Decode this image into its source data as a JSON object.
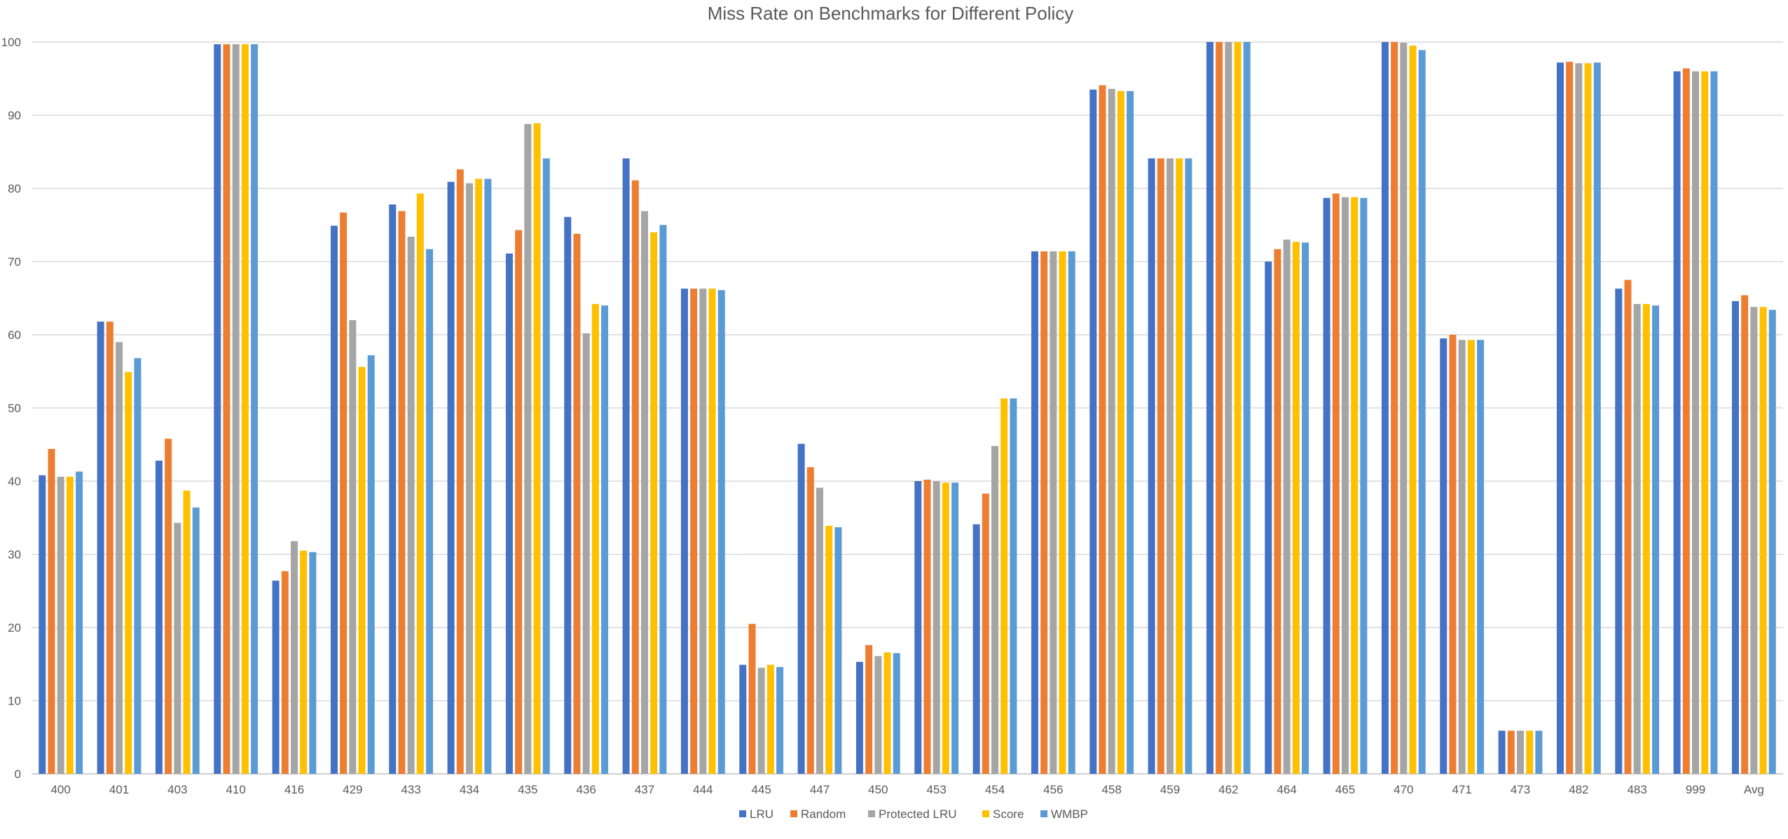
{
  "chart_data": {
    "type": "bar",
    "title": "Miss Rate on Benchmarks for Different Policy",
    "xlabel": "",
    "ylabel": "",
    "ylim": [
      0,
      100
    ],
    "yticks": [
      0,
      10,
      20,
      30,
      40,
      50,
      60,
      70,
      80,
      90,
      100
    ],
    "grid": true,
    "legend_position": "bottom",
    "categories": [
      "400",
      "401",
      "403",
      "410",
      "416",
      "429",
      "433",
      "434",
      "435",
      "436",
      "437",
      "444",
      "445",
      "447",
      "450",
      "453",
      "454",
      "456",
      "458",
      "459",
      "462",
      "464",
      "465",
      "470",
      "471",
      "473",
      "482",
      "483",
      "999",
      "Avg"
    ],
    "series": [
      {
        "name": "LRU",
        "color": "#4472c4",
        "values": [
          40.8,
          61.8,
          42.8,
          99.7,
          26.4,
          74.9,
          77.8,
          80.9,
          71.1,
          76.1,
          84.1,
          66.3,
          14.9,
          45.1,
          15.3,
          40.0,
          34.1,
          71.4,
          93.5,
          84.1,
          100.0,
          70.0,
          78.7,
          100.0,
          59.5,
          5.9,
          97.2,
          66.3,
          96.0,
          64.6
        ]
      },
      {
        "name": "Random",
        "color": "#ed7d31",
        "values": [
          44.4,
          61.8,
          45.8,
          99.7,
          27.7,
          76.7,
          76.9,
          82.6,
          74.3,
          73.8,
          81.1,
          66.3,
          20.5,
          41.9,
          17.6,
          40.2,
          38.3,
          71.4,
          94.1,
          84.1,
          100.0,
          71.7,
          79.3,
          100.0,
          60.0,
          5.9,
          97.3,
          67.5,
          96.4,
          65.4
        ]
      },
      {
        "name": "Protected LRU",
        "color": "#a5a5a5",
        "values": [
          40.6,
          59.0,
          34.3,
          99.7,
          31.8,
          62.0,
          73.4,
          80.7,
          88.8,
          60.2,
          76.9,
          66.3,
          14.5,
          39.1,
          16.1,
          40.0,
          44.8,
          71.4,
          93.6,
          84.1,
          100.0,
          73.0,
          78.8,
          99.9,
          59.3,
          5.9,
          97.1,
          64.2,
          96.0,
          63.8
        ]
      },
      {
        "name": "Score",
        "color": "#ffc000",
        "values": [
          40.6,
          54.9,
          38.7,
          99.7,
          30.5,
          55.6,
          79.3,
          81.3,
          88.9,
          64.2,
          74.0,
          66.3,
          14.9,
          33.9,
          16.6,
          39.8,
          51.3,
          71.4,
          93.3,
          84.1,
          100.0,
          72.7,
          78.8,
          99.5,
          59.3,
          5.9,
          97.1,
          64.2,
          96.0,
          63.8
        ]
      },
      {
        "name": "WMBP",
        "color": "#5b9bd5",
        "values": [
          41.3,
          56.8,
          36.4,
          99.7,
          30.3,
          57.2,
          71.7,
          81.3,
          84.1,
          64.0,
          75.0,
          66.1,
          14.6,
          33.7,
          16.5,
          39.8,
          51.3,
          71.4,
          93.3,
          84.1,
          100.0,
          72.6,
          78.7,
          98.9,
          59.3,
          5.9,
          97.2,
          64.0,
          96.0,
          63.4
        ]
      }
    ]
  }
}
